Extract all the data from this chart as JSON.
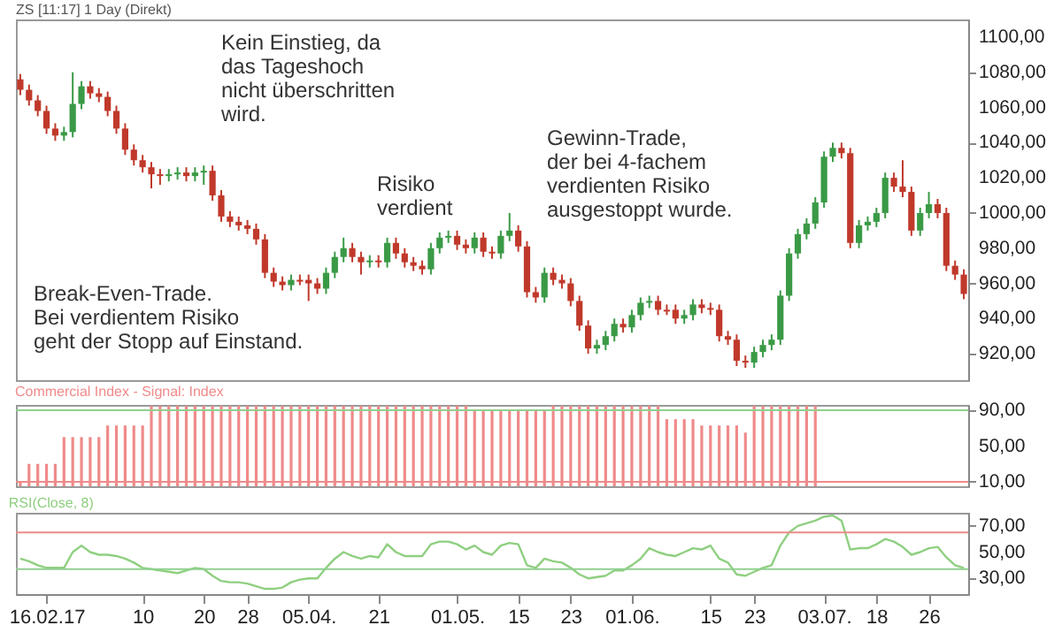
{
  "chart_data": [
    {
      "type": "candlestick",
      "title": "ZS [11:17] 1 Day (Direkt)",
      "categories": [
        null,
        null,
        null,
        "16.02.17",
        null,
        null,
        null,
        null,
        null,
        null,
        null,
        null,
        null,
        null,
        "10",
        null,
        null,
        null,
        null,
        null,
        null,
        "20",
        null,
        null,
        null,
        null,
        "28",
        null,
        null,
        null,
        null,
        null,
        null,
        "05.04.",
        null,
        null,
        null,
        null,
        null,
        null,
        null,
        "21",
        null,
        null,
        null,
        null,
        null,
        null,
        null,
        null,
        "01.05.",
        null,
        null,
        null,
        null,
        null,
        null,
        "15",
        null,
        null,
        null,
        null,
        null,
        "23",
        null,
        null,
        null,
        null,
        null,
        null,
        "01.06.",
        null,
        null,
        null,
        null,
        null,
        null,
        null,
        null,
        "15",
        null,
        null,
        null,
        null,
        "23",
        null,
        null,
        null,
        null,
        null,
        null,
        null,
        "03.07.",
        null,
        null,
        null,
        null,
        null,
        "18",
        null,
        null,
        null,
        null,
        null,
        "26",
        null,
        null,
        null,
        null
      ],
      "ohlc": [
        [
          1076,
          1079,
          1067,
          1070
        ],
        [
          1070,
          1073,
          1061,
          1064
        ],
        [
          1064,
          1067,
          1055,
          1058
        ],
        [
          1058,
          1061,
          1045,
          1048
        ],
        [
          1048,
          1051,
          1041,
          1044
        ],
        [
          1044,
          1049,
          1041,
          1046
        ],
        [
          1046,
          1080,
          1043,
          1062
        ],
        [
          1062,
          1075,
          1059,
          1072
        ],
        [
          1072,
          1075,
          1065,
          1068
        ],
        [
          1068,
          1071,
          1063,
          1066
        ],
        [
          1066,
          1069,
          1055,
          1058
        ],
        [
          1058,
          1061,
          1045,
          1048
        ],
        [
          1048,
          1051,
          1033,
          1036
        ],
        [
          1036,
          1039,
          1027,
          1030
        ],
        [
          1030,
          1033,
          1023,
          1026
        ],
        [
          1026,
          1029,
          1014,
          1022
        ],
        [
          1022,
          1025,
          1016,
          1021
        ],
        [
          1021,
          1025,
          1018,
          1022
        ],
        [
          1022,
          1026,
          1019,
          1023
        ],
        [
          1023,
          1026,
          1018,
          1021
        ],
        [
          1021,
          1026,
          1018,
          1023
        ],
        [
          1023,
          1027,
          1016,
          1024
        ],
        [
          1024,
          1027,
          1007,
          1010
        ],
        [
          1010,
          1013,
          995,
          998
        ],
        [
          998,
          1001,
          992,
          995
        ],
        [
          995,
          998,
          990,
          993
        ],
        [
          993,
          996,
          988,
          991
        ],
        [
          991,
          994,
          982,
          985
        ],
        [
          985,
          988,
          963,
          966
        ],
        [
          966,
          969,
          958,
          961
        ],
        [
          961,
          964,
          956,
          959
        ],
        [
          959,
          965,
          956,
          962
        ],
        [
          962,
          965,
          959,
          961
        ],
        [
          962,
          965,
          950,
          960
        ],
        [
          960,
          963,
          954,
          957
        ],
        [
          957,
          969,
          954,
          966
        ],
        [
          966,
          978,
          963,
          975
        ],
        [
          975,
          986,
          972,
          980
        ],
        [
          980,
          983,
          972,
          975
        ],
        [
          975,
          978,
          965,
          972
        ],
        [
          972,
          976,
          969,
          973
        ],
        [
          973,
          976,
          969,
          972
        ],
        [
          972,
          986,
          969,
          983
        ],
        [
          983,
          986,
          974,
          977
        ],
        [
          977,
          980,
          969,
          972
        ],
        [
          972,
          975,
          967,
          970
        ],
        [
          970,
          973,
          965,
          968
        ],
        [
          968,
          983,
          965,
          980
        ],
        [
          980,
          989,
          977,
          986
        ],
        [
          986,
          990,
          983,
          987
        ],
        [
          987,
          990,
          979,
          982
        ],
        [
          982,
          985,
          977,
          980
        ],
        [
          980,
          989,
          977,
          986
        ],
        [
          986,
          989,
          975,
          978
        ],
        [
          978,
          981,
          974,
          977
        ],
        [
          977,
          990,
          974,
          987
        ],
        [
          987,
          1000,
          984,
          990
        ],
        [
          990,
          993,
          978,
          981
        ],
        [
          981,
          984,
          952,
          955
        ],
        [
          955,
          958,
          949,
          952
        ],
        [
          952,
          969,
          949,
          966
        ],
        [
          966,
          969,
          959,
          962
        ],
        [
          962,
          965,
          957,
          960
        ],
        [
          960,
          963,
          947,
          950
        ],
        [
          950,
          953,
          933,
          936
        ],
        [
          936,
          939,
          920,
          923
        ],
        [
          923,
          928,
          920,
          925
        ],
        [
          925,
          933,
          922,
          930
        ],
        [
          930,
          940,
          927,
          937
        ],
        [
          937,
          940,
          932,
          935
        ],
        [
          935,
          945,
          932,
          942
        ],
        [
          942,
          952,
          939,
          949
        ],
        [
          949,
          953,
          946,
          950
        ],
        [
          950,
          953,
          942,
          945
        ],
        [
          945,
          948,
          942,
          944
        ],
        [
          945,
          948,
          937,
          940
        ],
        [
          940,
          945,
          937,
          942
        ],
        [
          942,
          951,
          939,
          948
        ],
        [
          948,
          951,
          943,
          946
        ],
        [
          946,
          949,
          942,
          945
        ],
        [
          945,
          948,
          927,
          930
        ],
        [
          930,
          933,
          925,
          928
        ],
        [
          928,
          931,
          913,
          916
        ],
        [
          916,
          919,
          912,
          915
        ],
        [
          915,
          924,
          912,
          921
        ],
        [
          921,
          928,
          918,
          925
        ],
        [
          925,
          931,
          922,
          928
        ],
        [
          928,
          956,
          925,
          953
        ],
        [
          953,
          980,
          950,
          977
        ],
        [
          977,
          991,
          974,
          988
        ],
        [
          988,
          997,
          985,
          994
        ],
        [
          994,
          1009,
          991,
          1006
        ],
        [
          1006,
          1035,
          1003,
          1032
        ],
        [
          1032,
          1040,
          1029,
          1037
        ],
        [
          1037,
          1040,
          1031,
          1034
        ],
        [
          1034,
          1037,
          980,
          983
        ],
        [
          983,
          996,
          980,
          993
        ],
        [
          993,
          998,
          990,
          995
        ],
        [
          995,
          1003,
          992,
          1000
        ],
        [
          1000,
          1023,
          997,
          1020
        ],
        [
          1020,
          1023,
          1012,
          1015
        ],
        [
          1015,
          1030,
          1009,
          1012
        ],
        [
          1012,
          1015,
          987,
          990
        ],
        [
          990,
          1003,
          987,
          1000
        ],
        [
          1000,
          1012,
          997,
          1005
        ],
        [
          1005,
          1008,
          997,
          1000
        ],
        [
          1000,
          1003,
          967,
          970
        ],
        [
          970,
          973,
          962,
          965
        ],
        [
          965,
          968,
          951,
          954
        ]
      ],
      "colors": [
        "#c0392b",
        "#c0392b",
        "#c0392b",
        "#c0392b",
        "#c0392b",
        "#3a9a46",
        "#3a9a46",
        "#3a9a46",
        "#c0392b",
        "#c0392b",
        "#c0392b",
        "#c0392b",
        "#c0392b",
        "#c0392b",
        "#c0392b",
        "#c0392b",
        "#c0392b",
        "#3a9a46",
        "#3a9a46",
        "#c0392b",
        "#3a9a46",
        "#3a9a46",
        "#c0392b",
        "#c0392b",
        "#c0392b",
        "#c0392b",
        "#c0392b",
        "#c0392b",
        "#c0392b",
        "#c0392b",
        "#c0392b",
        "#3a9a46",
        "#c0392b",
        "#c0392b",
        "#c0392b",
        "#3a9a46",
        "#3a9a46",
        "#3a9a46",
        "#c0392b",
        "#c0392b",
        "#3a9a46",
        "#c0392b",
        "#3a9a46",
        "#c0392b",
        "#c0392b",
        "#c0392b",
        "#c0392b",
        "#3a9a46",
        "#3a9a46",
        "#3a9a46",
        "#c0392b",
        "#c0392b",
        "#3a9a46",
        "#c0392b",
        "#c0392b",
        "#3a9a46",
        "#3a9a46",
        "#c0392b",
        "#c0392b",
        "#c0392b",
        "#3a9a46",
        "#c0392b",
        "#c0392b",
        "#c0392b",
        "#c0392b",
        "#c0392b",
        "#3a9a46",
        "#3a9a46",
        "#3a9a46",
        "#c0392b",
        "#3a9a46",
        "#3a9a46",
        "#3a9a46",
        "#c0392b",
        "#c0392b",
        "#c0392b",
        "#3a9a46",
        "#3a9a46",
        "#c0392b",
        "#c0392b",
        "#c0392b",
        "#c0392b",
        "#c0392b",
        "#c0392b",
        "#3a9a46",
        "#3a9a46",
        "#3a9a46",
        "#3a9a46",
        "#3a9a46",
        "#3a9a46",
        "#3a9a46",
        "#3a9a46",
        "#3a9a46",
        "#3a9a46",
        "#c0392b",
        "#c0392b",
        "#3a9a46",
        "#3a9a46",
        "#3a9a46",
        "#3a9a46",
        "#c0392b",
        "#c0392b",
        "#c0392b",
        "#3a9a46",
        "#3a9a46",
        "#c0392b",
        "#c0392b",
        "#c0392b",
        "#c0392b"
      ],
      "ylim": [
        905,
        1110
      ],
      "yticks": [
        {
          "value": 920,
          "label": "920,00"
        },
        {
          "value": 940,
          "label": "940,00"
        },
        {
          "value": 960,
          "label": "960,00"
        },
        {
          "value": 980,
          "label": "980,00"
        },
        {
          "value": 1000,
          "label": "1000,00"
        },
        {
          "value": 1020,
          "label": "1020,00"
        },
        {
          "value": 1040,
          "label": "1040,00"
        },
        {
          "value": 1060,
          "label": "1060,00"
        },
        {
          "value": 1080,
          "label": "1080,00"
        },
        {
          "value": 1100,
          "label": "1100,00"
        }
      ],
      "annotations": [
        "Kein Einstieg, da\ndas Tageshoch\nnicht überschritten\nwird.",
        "Risiko\nverdient",
        "Break-Even-Trade.\nBei verdientem Risiko\ngeht der Stopp auf Einstand.",
        "Gewinn-Trade,\nder bei 4-fachem\nverdienten Risiko\nausgestoppt wurde."
      ],
      "tick_labels": "y"
    },
    {
      "type": "bar",
      "title": "Commercial Index - Signal: Index",
      "categories": [
        null,
        null,
        null,
        "16.02.17",
        null,
        null,
        null,
        null,
        null,
        null,
        null,
        null,
        null,
        null,
        "10",
        null,
        null,
        null,
        null,
        null,
        null,
        "20",
        null,
        null,
        null,
        null,
        "28",
        null,
        null,
        null,
        null,
        null,
        null,
        "05.04.",
        null,
        null,
        null,
        null,
        null,
        null,
        null,
        "21",
        null,
        null,
        null,
        null,
        null,
        null,
        null,
        null,
        "01.05.",
        null,
        null,
        null,
        null,
        null,
        null,
        "15",
        null,
        null,
        null,
        null,
        null,
        "23",
        null,
        null,
        null,
        null,
        null,
        null,
        "01.06.",
        null,
        null,
        null,
        null,
        null,
        null,
        null,
        null,
        "15",
        null,
        null,
        null,
        null,
        "23",
        null,
        null,
        null,
        null,
        null,
        null,
        null,
        "03.07.",
        null,
        null,
        null,
        null,
        null,
        "18",
        null,
        null,
        null,
        null,
        null,
        "26",
        null,
        null,
        null,
        null
      ],
      "values": [
        10,
        30,
        30,
        30,
        30,
        60,
        60,
        60,
        60,
        60,
        73,
        73,
        73,
        73,
        73,
        95,
        95,
        95,
        95,
        95,
        95,
        95,
        95,
        95,
        95,
        95,
        95,
        95,
        95,
        95,
        95,
        95,
        95,
        95,
        95,
        95,
        95,
        95,
        95,
        95,
        95,
        95,
        95,
        95,
        95,
        95,
        95,
        95,
        95,
        95,
        95,
        95,
        90,
        90,
        90,
        90,
        90,
        90,
        90,
        90,
        90,
        95,
        95,
        95,
        95,
        95,
        95,
        95,
        95,
        95,
        95,
        95,
        95,
        95,
        80,
        80,
        80,
        80,
        73,
        73,
        73,
        73,
        73,
        65,
        95,
        95,
        95,
        95,
        95,
        95,
        95,
        95,
        null,
        null,
        null,
        null,
        null,
        null,
        null,
        null,
        null,
        null,
        null,
        null,
        null,
        null,
        null,
        null,
        null
      ],
      "color": "#f08a8a",
      "ylim": [
        5,
        96
      ],
      "yticks": [
        {
          "value": 10,
          "label": "10,00"
        },
        {
          "value": 50,
          "label": "50,00"
        },
        {
          "value": 90,
          "label": "90,00"
        }
      ],
      "ref_lines": [
        {
          "axis": "y",
          "value": 90,
          "color": "#8fd08f"
        },
        {
          "axis": "y",
          "value": 10,
          "color": "#f08a8a"
        }
      ],
      "tick_labels": "y"
    },
    {
      "type": "line",
      "title": "RSI(Close, 8)",
      "categories": [
        null,
        null,
        null,
        "16.02.17",
        null,
        null,
        null,
        null,
        null,
        null,
        null,
        null,
        null,
        null,
        "10",
        null,
        null,
        null,
        null,
        null,
        null,
        "20",
        null,
        null,
        null,
        null,
        "28",
        null,
        null,
        null,
        null,
        null,
        null,
        "05.04.",
        null,
        null,
        null,
        null,
        null,
        null,
        null,
        "21",
        null,
        null,
        null,
        null,
        null,
        null,
        null,
        null,
        "01.05.",
        null,
        null,
        null,
        null,
        null,
        null,
        "15",
        null,
        null,
        null,
        null,
        null,
        "23",
        null,
        null,
        null,
        null,
        null,
        null,
        "01.06.",
        null,
        null,
        null,
        null,
        null,
        null,
        null,
        null,
        "15",
        null,
        null,
        null,
        null,
        "23",
        null,
        null,
        null,
        null,
        null,
        null,
        null,
        "03.07.",
        null,
        null,
        null,
        null,
        null,
        "18",
        null,
        null,
        null,
        null,
        null,
        "26",
        null,
        null,
        null,
        null
      ],
      "values": [
        45,
        43,
        40,
        38,
        38,
        38,
        50,
        55,
        50,
        48,
        48,
        47,
        45,
        42,
        38,
        37,
        36,
        35,
        34,
        36,
        38,
        37,
        32,
        28,
        27,
        27,
        26,
        24,
        22,
        22,
        23,
        27,
        29,
        30,
        30,
        38,
        45,
        50,
        47,
        45,
        47,
        46,
        56,
        50,
        47,
        47,
        47,
        56,
        58,
        58,
        56,
        52,
        55,
        50,
        48,
        55,
        57,
        56,
        40,
        38,
        45,
        43,
        42,
        38,
        33,
        30,
        31,
        32,
        36,
        36,
        40,
        45,
        53,
        50,
        48,
        47,
        50,
        53,
        52,
        55,
        45,
        42,
        33,
        32,
        35,
        38,
        40,
        55,
        65,
        70,
        72,
        74,
        77,
        78,
        74,
        52,
        53,
        53,
        56,
        60,
        58,
        54,
        48,
        50,
        53,
        54,
        46,
        40,
        38
      ],
      "color": "#8fcf80",
      "ylim": [
        18,
        80
      ],
      "yticks": [
        {
          "value": 30,
          "label": "30,00"
        },
        {
          "value": 50,
          "label": "50,00"
        },
        {
          "value": 70,
          "label": "70,00"
        }
      ],
      "ref_lines": [
        {
          "axis": "y",
          "value": 65,
          "color": "#f08a8a"
        },
        {
          "axis": "y",
          "value": 37,
          "color": "#8fd08f"
        }
      ]
    }
  ]
}
